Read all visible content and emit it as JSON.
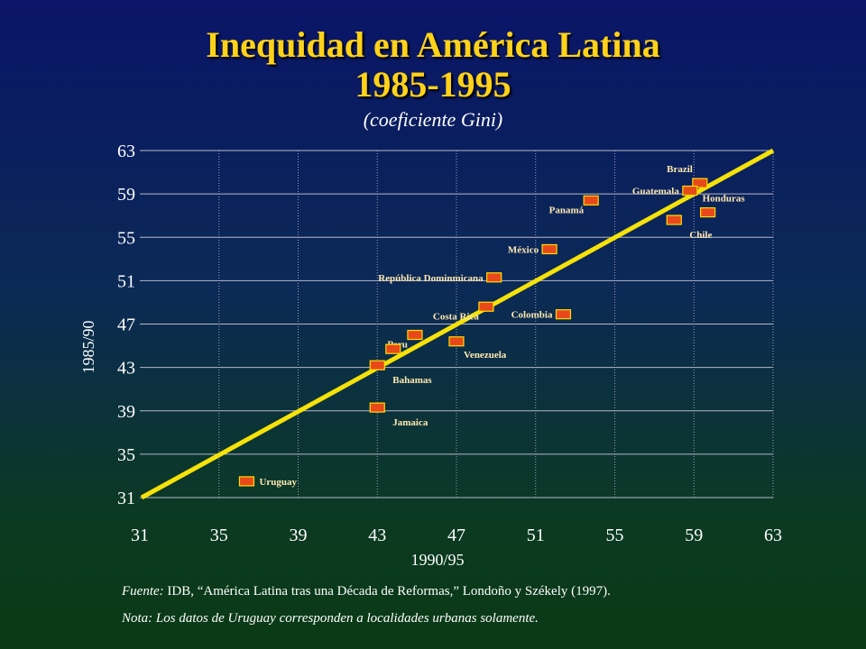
{
  "slide": {
    "title_line1": "Inequidad en América Latina",
    "title_line2": "1985-1995",
    "subtitle": "(coeficiente Gini)",
    "source_prefix": "Fuente:",
    "source_text": " IDB, “América Latina tras una Década de Reformas,” Londoño y Székely (1997).",
    "note": "Nota: Los datos de Uruguay corresponden a localidades urbanas solamente."
  },
  "chart_data": {
    "type": "scatter",
    "xlabel": "1990/95",
    "ylabel": "1985/90",
    "xlim": [
      31,
      63
    ],
    "ylim": [
      31,
      63
    ],
    "xticks": [
      31,
      35,
      39,
      43,
      47,
      51,
      55,
      59,
      63
    ],
    "yticks": [
      31,
      35,
      39,
      43,
      47,
      51,
      55,
      59,
      63
    ],
    "grid": true,
    "reference_line": {
      "from": [
        31,
        31
      ],
      "to": [
        63,
        63
      ],
      "color": "#f5e20a"
    },
    "marker_color": "#e8491a",
    "points": [
      {
        "label": "Brazil",
        "x": 59.3,
        "y": 60.0,
        "label_pos": "upper-left"
      },
      {
        "label": "Guatemala",
        "x": 58.8,
        "y": 59.3,
        "label_pos": "left"
      },
      {
        "label": "Honduras",
        "x": 59.7,
        "y": 57.3,
        "label_pos": "upper-right"
      },
      {
        "label": "Panamá",
        "x": 53.8,
        "y": 58.4,
        "label_pos": "lower-left"
      },
      {
        "label": "Chile",
        "x": 58.0,
        "y": 56.6,
        "label_pos": "below"
      },
      {
        "label": "México",
        "x": 51.7,
        "y": 53.9,
        "label_pos": "left"
      },
      {
        "label": "República Dominmicana",
        "x": 48.9,
        "y": 51.3,
        "label_pos": "left"
      },
      {
        "label": "Costa Rica",
        "x": 48.5,
        "y": 48.6,
        "label_pos": "lower-left"
      },
      {
        "label": "Colombia",
        "x": 52.4,
        "y": 47.9,
        "label_pos": "left"
      },
      {
        "label": "Peru",
        "x": 44.9,
        "y": 46.0,
        "label_pos": "lower-left"
      },
      {
        "label": "Venezuela",
        "x": 47.0,
        "y": 45.4,
        "label_pos": "lower-right"
      },
      {
        "label": "Peru",
        "x": 43.8,
        "y": 44.7,
        "label_pos": "none"
      },
      {
        "label": "Bahamas",
        "x": 43.0,
        "y": 43.2,
        "label_pos": "below"
      },
      {
        "label": "Jamaica",
        "x": 43.0,
        "y": 39.3,
        "label_pos": "below"
      },
      {
        "label": "Uruguay",
        "x": 36.4,
        "y": 32.5,
        "label_pos": "right"
      }
    ]
  }
}
